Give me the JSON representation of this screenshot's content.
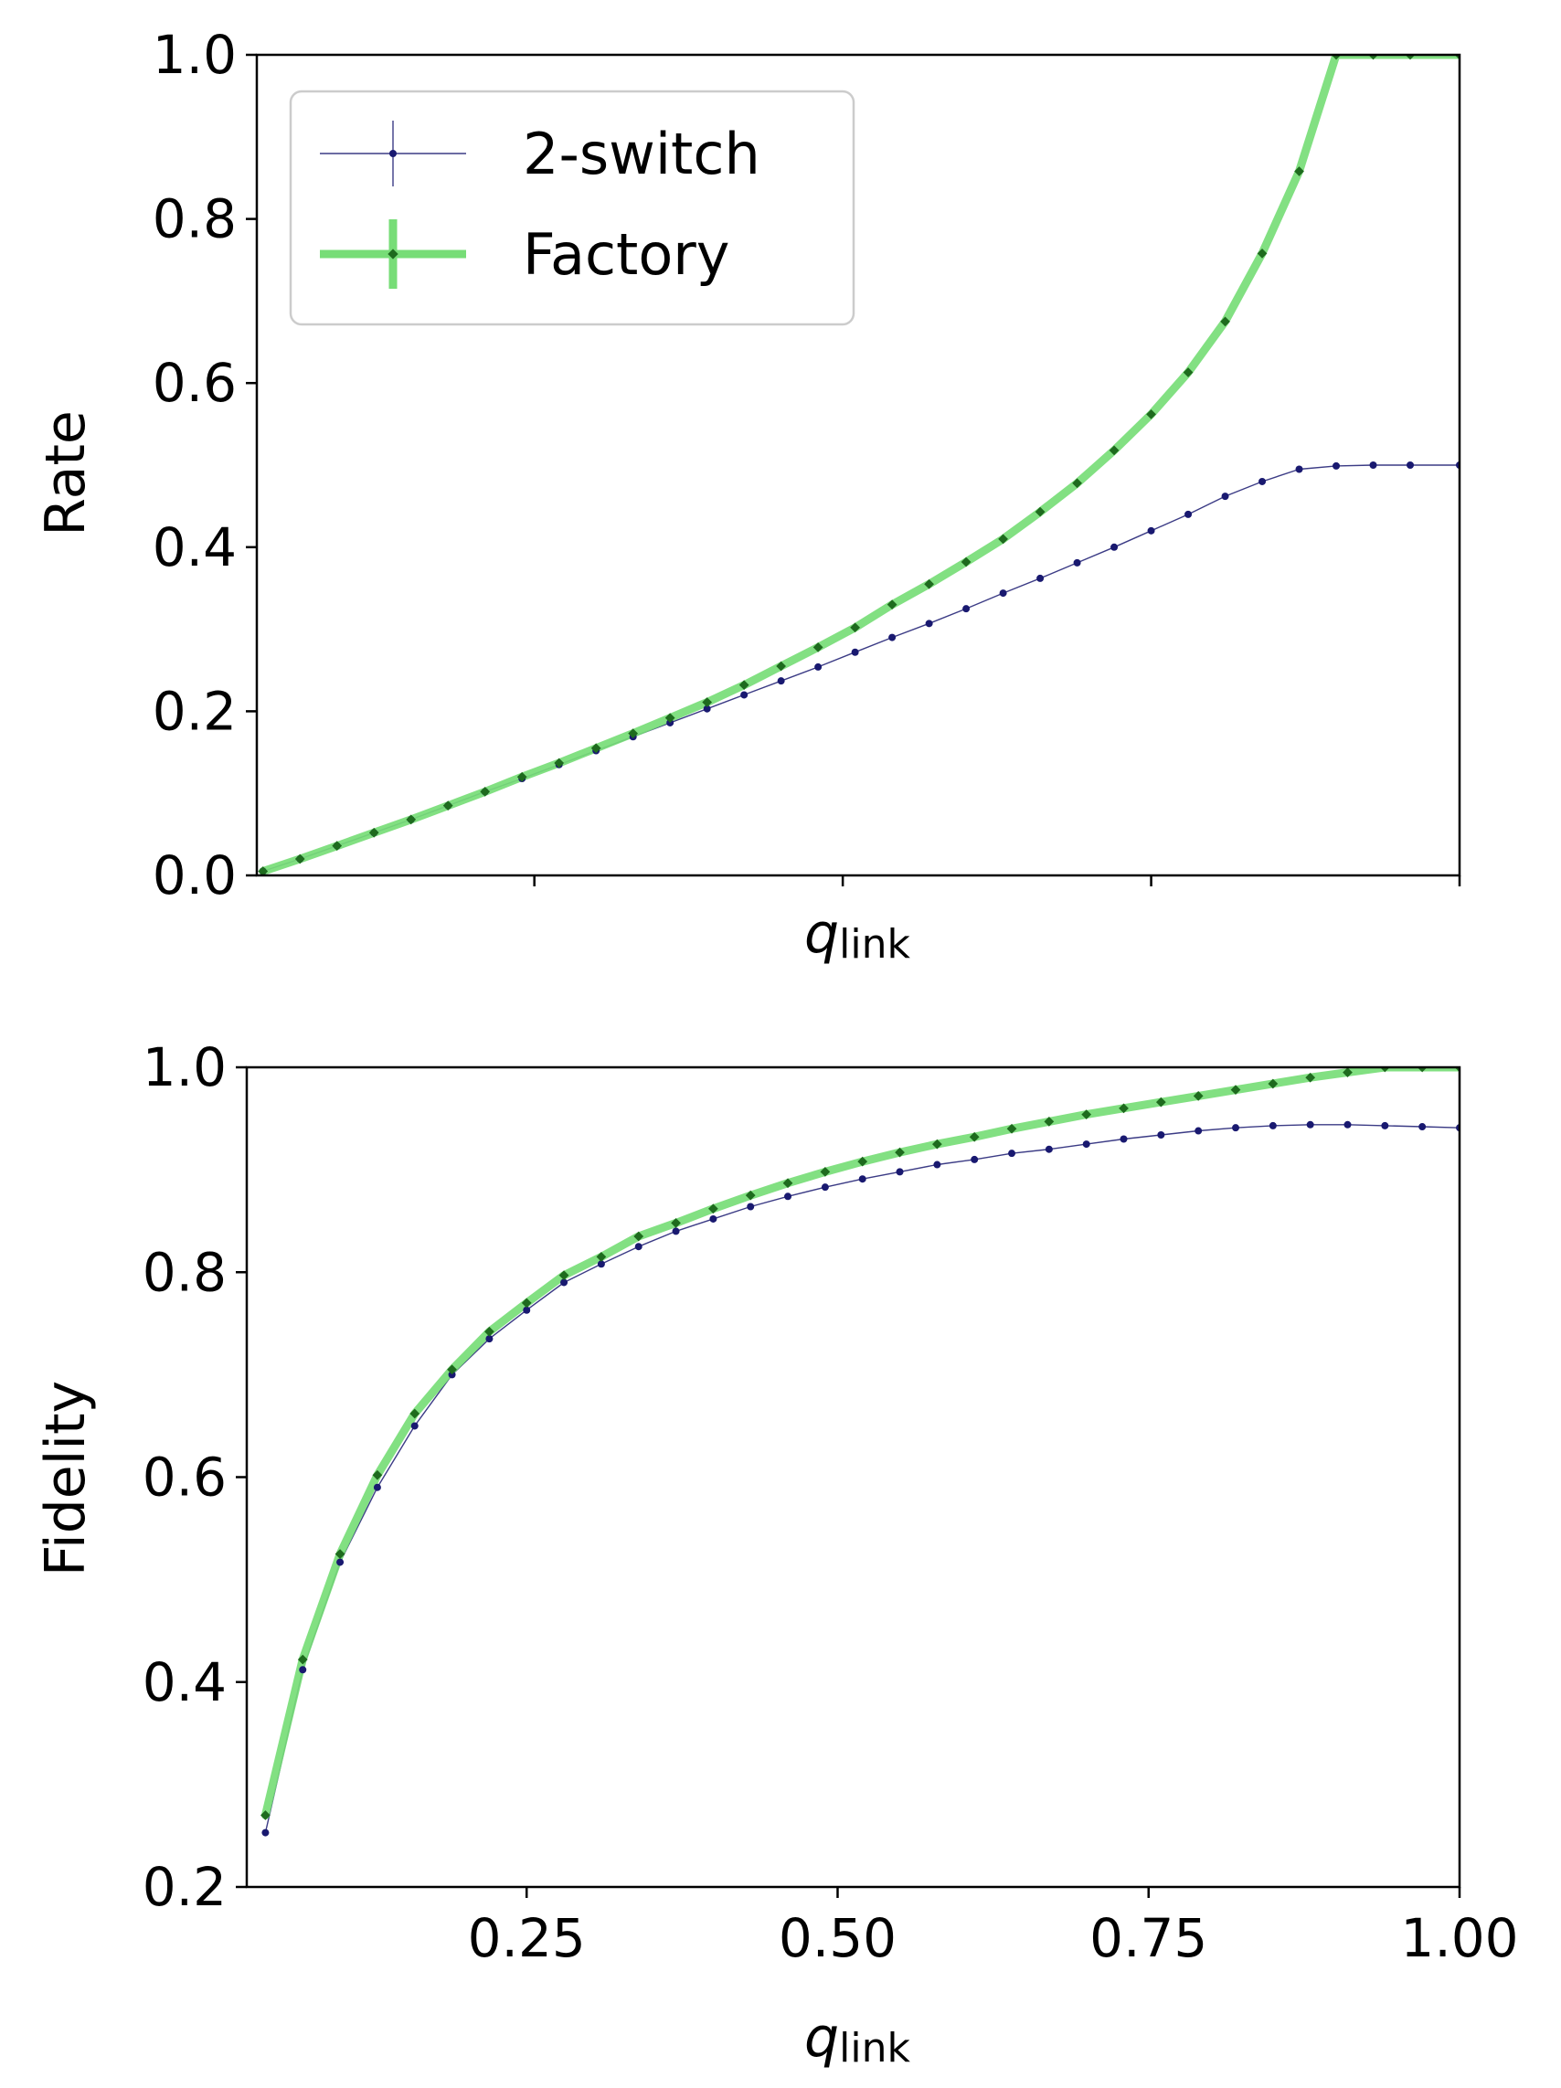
{
  "chart_data": [
    {
      "type": "line",
      "ylabel": "Rate",
      "xlabel": "q",
      "xlabel_subscript": "link",
      "xlim": [
        0.025,
        1.0
      ],
      "ylim": [
        0.0,
        1.0
      ],
      "x_ticks": [
        0.25,
        0.5,
        0.75,
        1.0
      ],
      "x_tick_labels": [],
      "y_ticks": [
        0.0,
        0.2,
        0.4,
        0.6,
        0.8,
        1.0
      ],
      "y_tick_labels": [
        "0.0",
        "0.2",
        "0.4",
        "0.6",
        "0.8",
        "1.0"
      ],
      "legend": {
        "placement": "upper-left",
        "entries": [
          "2-switch",
          "Factory"
        ]
      },
      "x": [
        0.03,
        0.06,
        0.09,
        0.12,
        0.15,
        0.18,
        0.21,
        0.24,
        0.27,
        0.3,
        0.33,
        0.36,
        0.39,
        0.42,
        0.45,
        0.48,
        0.51,
        0.54,
        0.57,
        0.6,
        0.63,
        0.66,
        0.69,
        0.72,
        0.75,
        0.78,
        0.81,
        0.84,
        0.87,
        0.9,
        0.93,
        0.96,
        1.0
      ],
      "series": [
        {
          "name": "2-switch",
          "color": "#191970",
          "values": [
            0.005,
            0.02,
            0.036,
            0.052,
            0.068,
            0.085,
            0.102,
            0.118,
            0.135,
            0.152,
            0.169,
            0.186,
            0.203,
            0.22,
            0.237,
            0.254,
            0.272,
            0.29,
            0.307,
            0.325,
            0.344,
            0.362,
            0.381,
            0.4,
            0.42,
            0.44,
            0.462,
            0.48,
            0.495,
            0.499,
            0.5,
            0.5,
            0.5
          ]
        },
        {
          "name": "Factory",
          "color": "#77dd77",
          "marker_color": "#1e6b1e",
          "values": [
            0.005,
            0.02,
            0.036,
            0.052,
            0.068,
            0.085,
            0.102,
            0.12,
            0.137,
            0.155,
            0.173,
            0.192,
            0.211,
            0.232,
            0.255,
            0.278,
            0.302,
            0.33,
            0.355,
            0.382,
            0.41,
            0.443,
            0.478,
            0.518,
            0.562,
            0.613,
            0.675,
            0.758,
            0.858,
            1.0,
            1.0,
            1.0,
            1.0
          ]
        }
      ]
    },
    {
      "type": "line",
      "ylabel": "Fidelity",
      "xlabel": "q",
      "xlabel_subscript": "link",
      "xlim": [
        0.025,
        1.0
      ],
      "ylim": [
        0.2,
        1.0
      ],
      "x_ticks": [
        0.25,
        0.5,
        0.75,
        1.0
      ],
      "x_tick_labels": [
        "0.25",
        "0.50",
        "0.75",
        "1.00"
      ],
      "y_ticks": [
        0.2,
        0.4,
        0.6,
        0.8,
        1.0
      ],
      "y_tick_labels": [
        "0.2",
        "0.4",
        "0.6",
        "0.8",
        "1.0"
      ],
      "x": [
        0.04,
        0.07,
        0.1,
        0.13,
        0.16,
        0.19,
        0.22,
        0.25,
        0.28,
        0.31,
        0.34,
        0.37,
        0.4,
        0.43,
        0.46,
        0.49,
        0.52,
        0.55,
        0.58,
        0.61,
        0.64,
        0.67,
        0.7,
        0.73,
        0.76,
        0.79,
        0.82,
        0.85,
        0.88,
        0.91,
        0.94,
        0.97,
        1.0
      ],
      "series": [
        {
          "name": "2-switch",
          "color": "#191970",
          "values": [
            0.253,
            0.412,
            0.517,
            0.59,
            0.65,
            0.7,
            0.735,
            0.763,
            0.79,
            0.808,
            0.825,
            0.84,
            0.852,
            0.864,
            0.874,
            0.883,
            0.891,
            0.898,
            0.905,
            0.91,
            0.916,
            0.92,
            0.925,
            0.93,
            0.934,
            0.938,
            0.941,
            0.943,
            0.944,
            0.944,
            0.943,
            0.942,
            0.941
          ]
        },
        {
          "name": "Factory",
          "color": "#77dd77",
          "marker_color": "#1e6b1e",
          "values": [
            0.27,
            0.422,
            0.525,
            0.602,
            0.662,
            0.705,
            0.742,
            0.77,
            0.797,
            0.815,
            0.835,
            0.848,
            0.862,
            0.875,
            0.887,
            0.898,
            0.908,
            0.917,
            0.925,
            0.932,
            0.94,
            0.947,
            0.954,
            0.96,
            0.966,
            0.972,
            0.978,
            0.984,
            0.99,
            0.995,
            1.0,
            1.0,
            1.0
          ]
        }
      ]
    }
  ]
}
